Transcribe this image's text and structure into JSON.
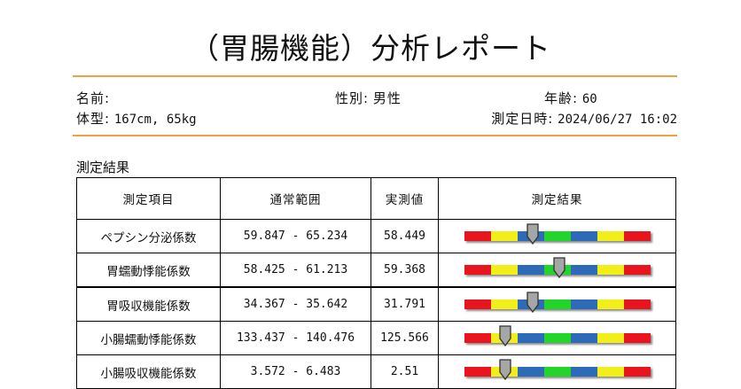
{
  "title": "（胃腸機能）分析レポート",
  "info": {
    "name_label": "名前:",
    "name_value": "",
    "gender_label": "性別:",
    "gender_value": "男性",
    "age_label": "年齢:",
    "age_value": "60",
    "body_label": "体型:",
    "body_value": "167cm, 65kg",
    "datetime_label": "測定日時:",
    "datetime_value": "2024/06/27 16:02"
  },
  "section_title": "測定結果",
  "table": {
    "headers": [
      "測定項目",
      "通常範囲",
      "実測値",
      "測定結果"
    ],
    "rows": [
      {
        "item": "ペプシン分泌係数",
        "range": "59.847 - 65.234",
        "value": "58.449",
        "level": 0.37
      },
      {
        "item": "胃蠕動悸能係数",
        "range": "58.425 - 61.213",
        "value": "59.368",
        "level": 0.51
      },
      {
        "item": "胃吸収機能係数",
        "range": "34.367 - 35.642",
        "value": "31.791",
        "level": 0.37
      },
      {
        "item": "小腸蠕動悸能係数",
        "range": "133.437 - 140.476",
        "value": "125.566",
        "level": 0.22
      },
      {
        "item": "小腸吸収機能係数",
        "range": "3.572 - 6.483",
        "value": "2.51",
        "level": 0.22
      }
    ]
  },
  "gauge": {
    "segments": [
      "#e8141e",
      "#f2ee1a",
      "#2d6bb8",
      "#23d42a",
      "#2d6bb8",
      "#f2ee1a",
      "#e8141e"
    ],
    "marker_color": "#a6a6a6"
  }
}
